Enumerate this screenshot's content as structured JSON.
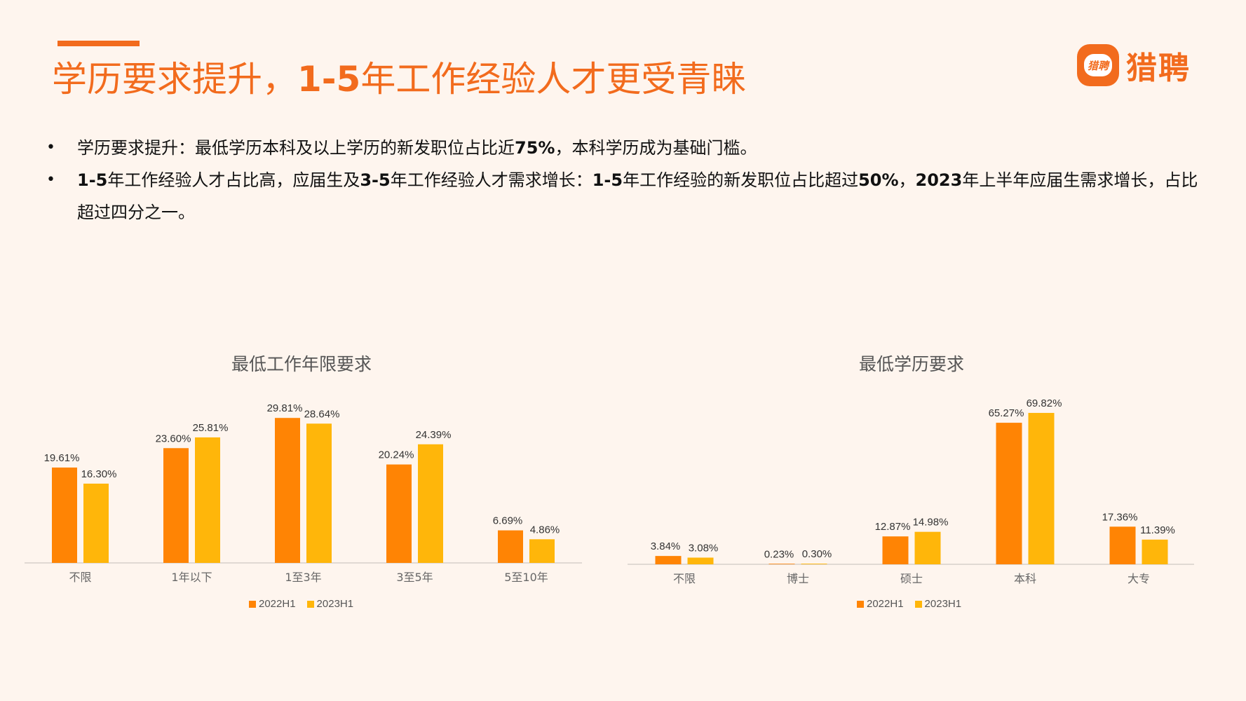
{
  "title_part1": "学历要求提升，",
  "title_part2": "1-5",
  "title_part3": "年工作经验人才更受青睐",
  "logo": {
    "mark_text": "猎聘",
    "brand": "猎聘"
  },
  "bullets": [
    {
      "pre": "学历要求提升：最低学历本科及以上学历的新发职位占比近",
      "bold": "75%",
      "post": "，本科学历成为基础门槛。"
    },
    {
      "b1": "1-5",
      "t1": "年工作经验人才占比高，应届生及",
      "b2": "3-5",
      "t2": "年工作经验人才需求增长：",
      "b3": "1-5",
      "t3": "年工作经验的新发职位占比超过",
      "b4": "50%",
      "t4": "，",
      "b5": "2023",
      "t5": "年上半年应届生需求增长，占比超过四分之一。"
    }
  ],
  "colors": {
    "accent": "#F26B1D",
    "series_2022": "#FF8404",
    "series_2023": "#FFB60A",
    "background": "#FEF5EE"
  },
  "chart_data": [
    {
      "type": "bar",
      "title": "最低工作年限要求",
      "categories": [
        "不限",
        "1年以下",
        "1至3年",
        "3至5年",
        "5至10年"
      ],
      "series": [
        {
          "name": "2022H1",
          "values": [
            19.61,
            23.6,
            29.81,
            20.24,
            6.69
          ],
          "labels": [
            "19.61%",
            "23.60%",
            "29.81%",
            "20.24%",
            "6.69%"
          ]
        },
        {
          "name": "2023H1",
          "values": [
            16.3,
            25.81,
            28.64,
            24.39,
            4.86
          ],
          "labels": [
            "16.30%",
            "25.81%",
            "28.64%",
            "24.39%",
            "4.86%"
          ]
        }
      ],
      "ylim": [
        0,
        32
      ],
      "legend": "bottom",
      "grid": false
    },
    {
      "type": "bar",
      "title": "最低学历要求",
      "categories": [
        "不限",
        "博士",
        "硕士",
        "本科",
        "大专"
      ],
      "series": [
        {
          "name": "2022H1",
          "values": [
            3.84,
            0.23,
            12.87,
            65.27,
            17.36
          ],
          "labels": [
            "3.84%",
            "0.23%",
            "12.87%",
            "65.27%",
            "17.36%"
          ]
        },
        {
          "name": "2023H1",
          "values": [
            3.08,
            0.3,
            14.98,
            69.82,
            11.39
          ],
          "labels": [
            "3.08%",
            "0.30%",
            "14.98%",
            "69.82%",
            "11.39%"
          ]
        }
      ],
      "ylim": [
        0,
        75
      ],
      "legend": "bottom",
      "grid": false
    }
  ]
}
